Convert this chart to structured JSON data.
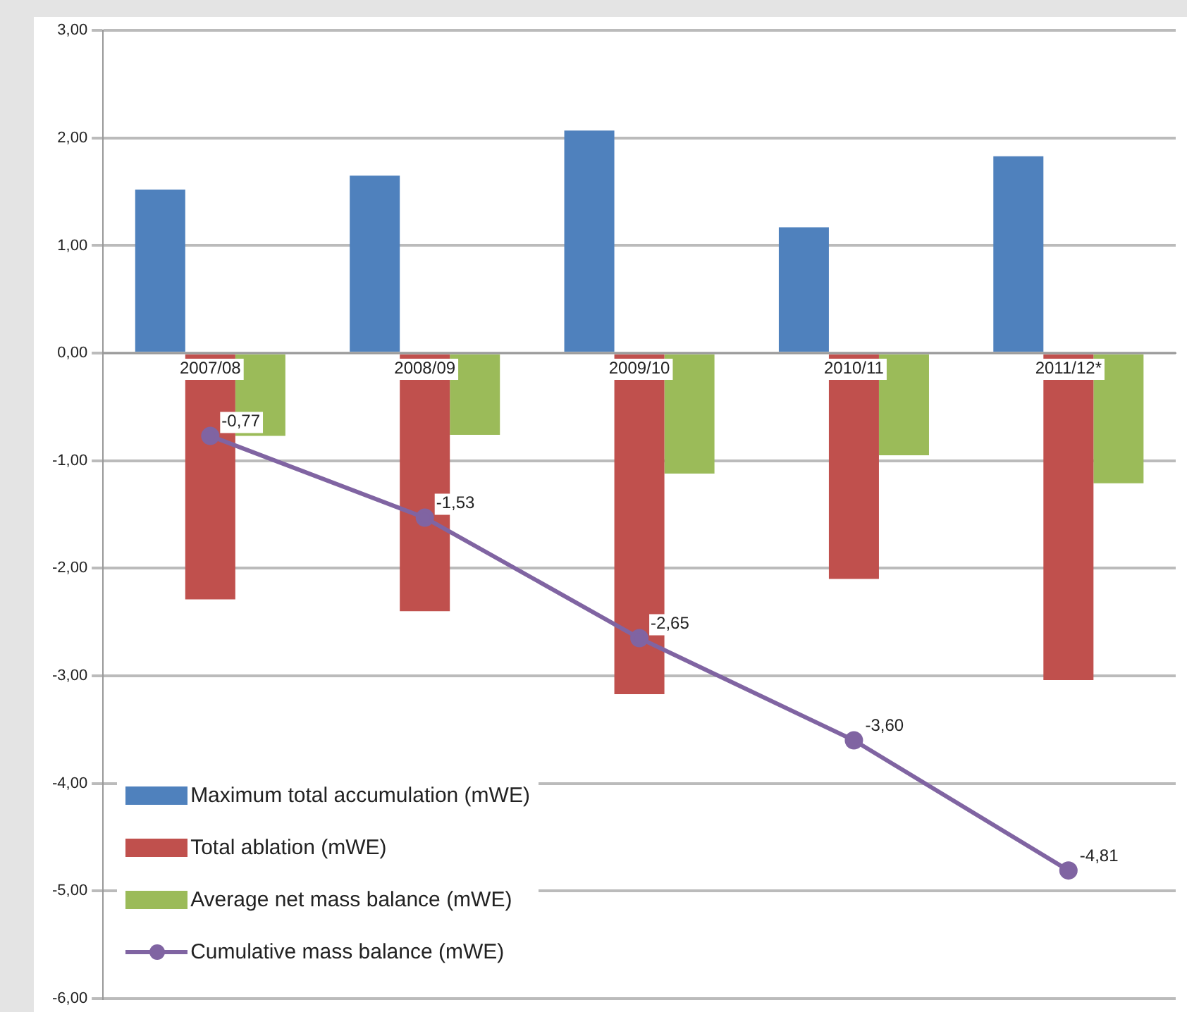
{
  "chart_data": {
    "type": "bar",
    "categories": [
      "2007/08",
      "2008/09",
      "2009/10",
      "2010/11",
      "2011/12*"
    ],
    "series": [
      {
        "name": "Maximum total accumulation (mWE)",
        "color": "#4f81bd",
        "values": [
          1.52,
          1.65,
          2.07,
          1.17,
          1.83
        ]
      },
      {
        "name": "Total ablation (mWE)",
        "color": "#c0504d",
        "values": [
          -2.29,
          -2.4,
          -3.17,
          -2.1,
          -3.04
        ]
      },
      {
        "name": "Average net mass balance (mWE)",
        "color": "#9bbb59",
        "values": [
          -0.77,
          -0.76,
          -1.12,
          -0.95,
          -1.21
        ]
      },
      {
        "name": "Cumulative mass balance (mWE)",
        "type": "line",
        "color": "#8064a2",
        "marker": "circle",
        "values": [
          -0.77,
          -1.53,
          -2.65,
          -3.6,
          -4.81
        ],
        "value_labels": [
          "-0,77",
          "-1,53",
          "-2,65",
          "-3,60",
          "-4,81"
        ]
      }
    ],
    "ylim": [
      -6,
      3
    ],
    "yticks": [
      {
        "value": 3,
        "label": "3,00"
      },
      {
        "value": 2,
        "label": "2,00"
      },
      {
        "value": 1,
        "label": "1,00"
      },
      {
        "value": 0,
        "label": "0,00"
      },
      {
        "value": -1,
        "label": "-1,00"
      },
      {
        "value": -2,
        "label": "-2,00"
      },
      {
        "value": -3,
        "label": "-3,00"
      },
      {
        "value": -4,
        "label": "-4,00"
      },
      {
        "value": -5,
        "label": "-5,00"
      },
      {
        "value": -6,
        "label": "-6,00"
      }
    ],
    "grid": "y",
    "legend": "bottom left"
  }
}
